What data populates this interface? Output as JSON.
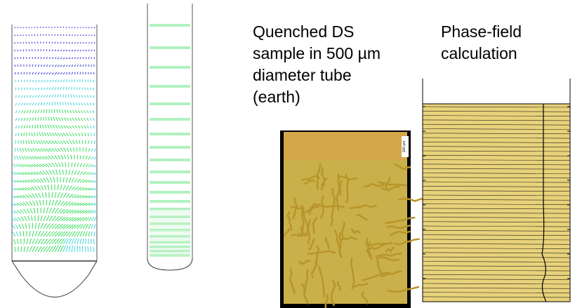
{
  "captions": {
    "sample": "Quenched DS\nsample in 500 µm\ndiameter tube\n(earth)",
    "phase_field": "Phase-field\ncalculation"
  },
  "micrograph": {
    "scale_bar_label": "100 µm"
  },
  "colors": {
    "tube_outline": "#8a8a8a",
    "vector_blue": "#2a2ad8",
    "vector_cyan": "#2fd0d8",
    "vector_green": "#22d84a",
    "phase_fill": "#e8d27a",
    "micrograph_gold": "#b8952a",
    "micrograph_bg": "#000000"
  },
  "icons": {
    "flow_field_left": "velocity-vector-field-convective",
    "flow_field_right": "velocity-vector-field-uniform",
    "micrograph": "optical-micrograph-dendrites",
    "phase_field": "phase-field-isotherm-plot"
  }
}
